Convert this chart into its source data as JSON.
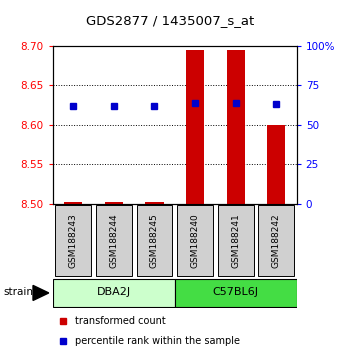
{
  "title": "GDS2877 / 1435007_s_at",
  "samples": [
    "GSM188243",
    "GSM188244",
    "GSM188245",
    "GSM188240",
    "GSM188241",
    "GSM188242"
  ],
  "strain_colors": [
    "#ccffcc",
    "#44dd44"
  ],
  "transformed_counts": [
    8.502,
    8.502,
    8.502,
    8.695,
    8.695,
    8.6
  ],
  "percentile_ranks": [
    62,
    62,
    62,
    64,
    64,
    63
  ],
  "ylim_left": [
    8.5,
    8.7
  ],
  "ylim_right": [
    0,
    100
  ],
  "yticks_left": [
    8.5,
    8.55,
    8.6,
    8.65,
    8.7
  ],
  "yticks_right": [
    0,
    25,
    50,
    75,
    100
  ],
  "bar_baseline": 8.5,
  "bar_color": "#cc0000",
  "dot_color": "#0000cc",
  "bg_color": "#ffffff",
  "sample_box_color": "#d0d0d0",
  "legend_bar_label": "transformed count",
  "legend_dot_label": "percentile rank within the sample"
}
